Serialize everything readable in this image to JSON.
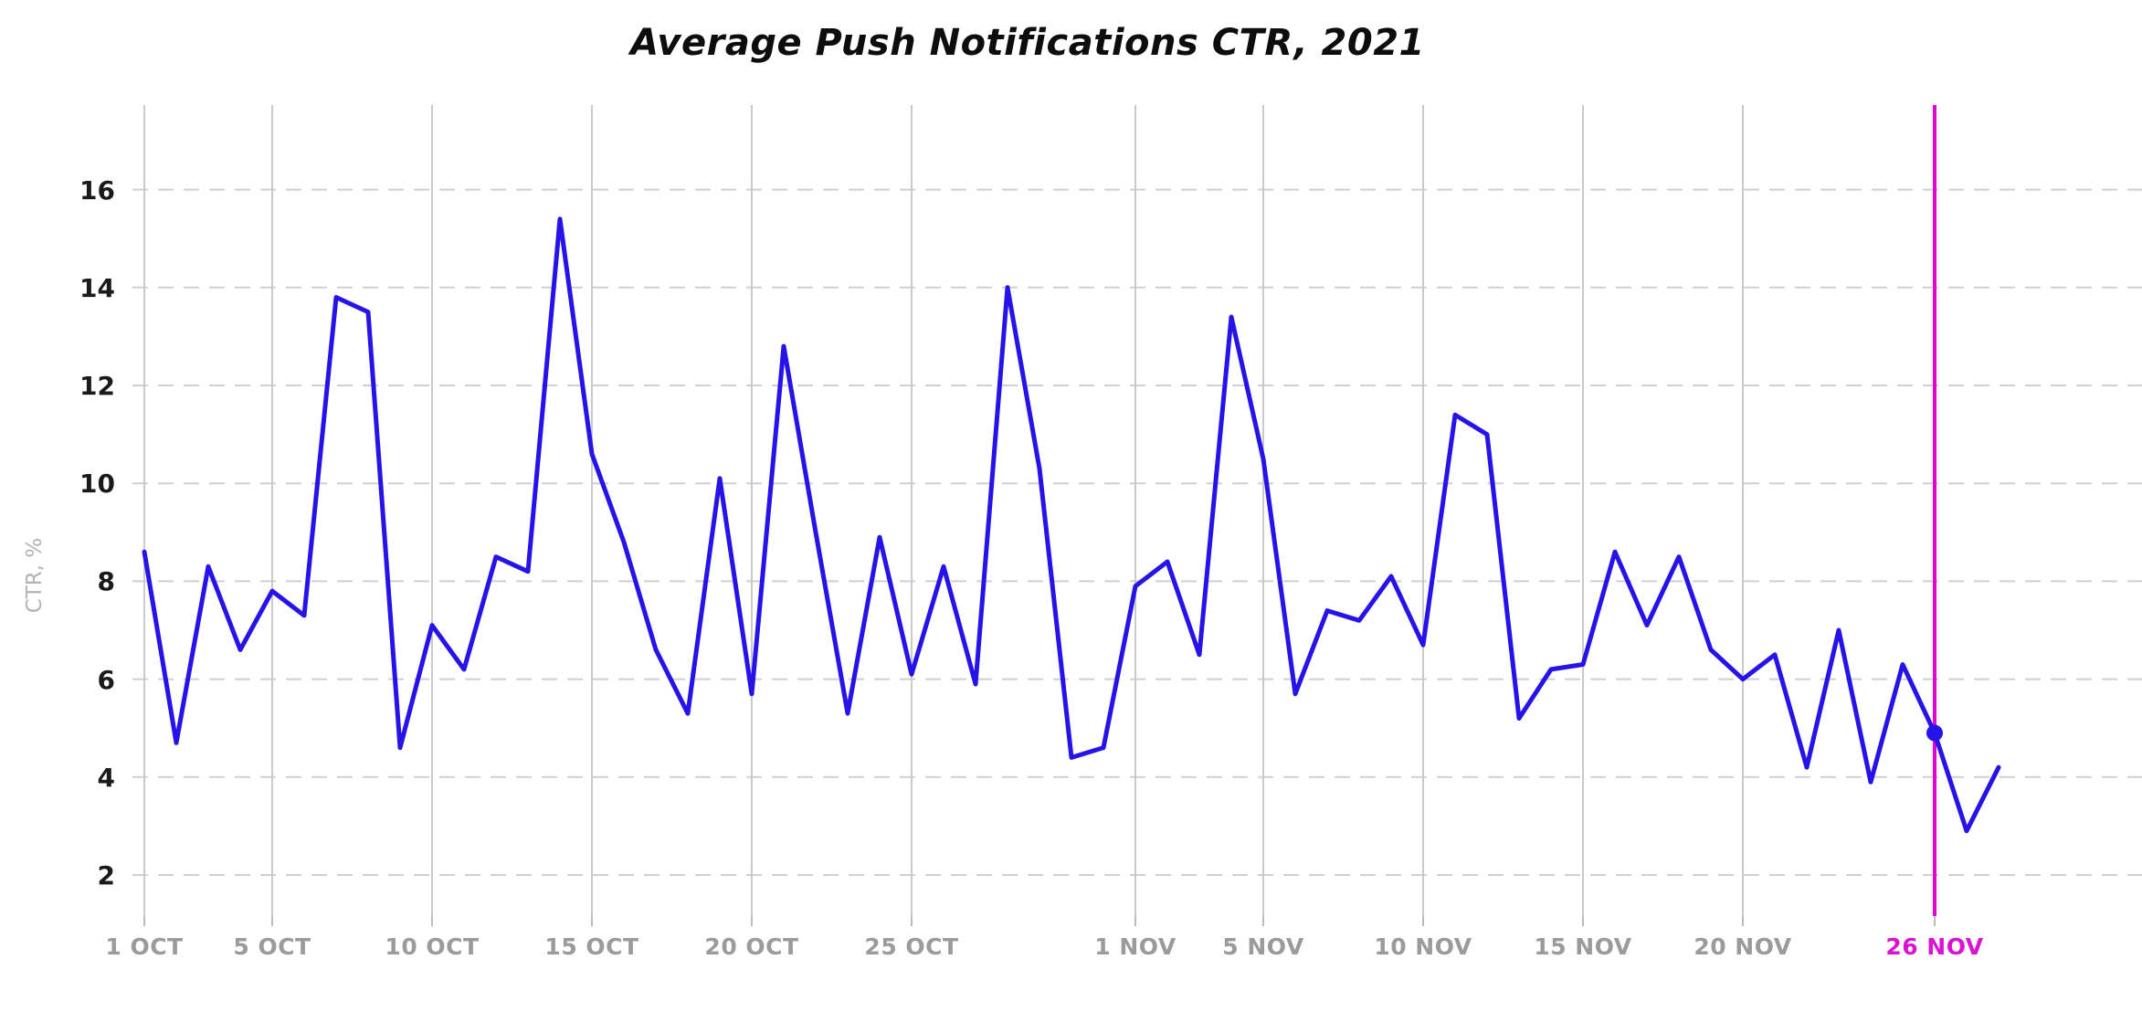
{
  "title": "Average Push Notifications CTR, 2021",
  "y_axis": {
    "label": "CTR, %",
    "ticks": [
      2,
      4,
      6,
      8,
      10,
      12,
      14,
      16
    ]
  },
  "x_axis": {
    "ticks": [
      {
        "label": "1 OCT",
        "day": 0,
        "highlight": false
      },
      {
        "label": "5 OCT",
        "day": 4,
        "highlight": false
      },
      {
        "label": "10 OCT",
        "day": 9,
        "highlight": false
      },
      {
        "label": "15 OCT",
        "day": 14,
        "highlight": false
      },
      {
        "label": "20 OCT",
        "day": 19,
        "highlight": false
      },
      {
        "label": "25 OCT",
        "day": 24,
        "highlight": false
      },
      {
        "label": "1 NOV",
        "day": 31,
        "highlight": false
      },
      {
        "label": "5 NOV",
        "day": 35,
        "highlight": false
      },
      {
        "label": "10 NOV",
        "day": 40,
        "highlight": false
      },
      {
        "label": "15 NOV",
        "day": 45,
        "highlight": false
      },
      {
        "label": "20 NOV",
        "day": 50,
        "highlight": false
      },
      {
        "label": "26 NOV",
        "day": 56,
        "highlight": true
      }
    ]
  },
  "selection": {
    "date_label": "26 NOV",
    "day": 56,
    "value": 4.9
  },
  "colors": {
    "line": "#2613ea",
    "accent": "#e206d6",
    "accent_text": "#db12d3",
    "h_grid": "#cfcfcf",
    "v_grid": "#c9c9c9",
    "tick_mark": "#bbbbbb",
    "x_label": "#9b9b9b",
    "y_label": "#1a1a1a",
    "y_axis_title": "#b3b3b3",
    "title_text": "#0d0d0d"
  },
  "chart_data": {
    "type": "line",
    "title": "Average Push Notifications CTR, 2021",
    "xlabel": "",
    "ylabel": "CTR, %",
    "ylim": [
      2,
      16
    ],
    "grid": true,
    "legend_position": "none",
    "x": [
      "1 Oct",
      "2 Oct",
      "3 Oct",
      "4 Oct",
      "5 Oct",
      "6 Oct",
      "7 Oct",
      "8 Oct",
      "9 Oct",
      "10 Oct",
      "11 Oct",
      "12 Oct",
      "13 Oct",
      "14 Oct",
      "15 Oct",
      "16 Oct",
      "17 Oct",
      "18 Oct",
      "19 Oct",
      "20 Oct",
      "21 Oct",
      "22 Oct",
      "23 Oct",
      "24 Oct",
      "25 Oct",
      "26 Oct",
      "27 Oct",
      "28 Oct",
      "29 Oct",
      "30 Oct",
      "31 Oct",
      "1 Nov",
      "2 Nov",
      "3 Nov",
      "4 Nov",
      "5 Nov",
      "6 Nov",
      "7 Nov",
      "8 Nov",
      "9 Nov",
      "10 Nov",
      "11 Nov",
      "12 Nov",
      "13 Nov",
      "14 Nov",
      "15 Nov",
      "16 Nov",
      "17 Nov",
      "18 Nov",
      "19 Nov",
      "20 Nov",
      "21 Nov",
      "22 Nov",
      "23 Nov",
      "24 Nov",
      "25 Nov",
      "26 Nov",
      "27 Nov",
      "28 Nov"
    ],
    "values": [
      8.6,
      4.7,
      8.3,
      6.6,
      7.8,
      7.3,
      13.8,
      13.5,
      4.6,
      7.1,
      6.2,
      8.5,
      8.2,
      15.4,
      10.6,
      8.8,
      6.6,
      5.3,
      10.1,
      5.7,
      12.8,
      9.0,
      5.3,
      8.9,
      6.1,
      8.3,
      5.9,
      14.0,
      10.3,
      4.4,
      4.6,
      7.9,
      8.4,
      6.5,
      13.4,
      10.5,
      5.7,
      7.4,
      7.2,
      8.1,
      6.7,
      11.4,
      11.0,
      5.2,
      6.2,
      6.3,
      8.6,
      7.1,
      8.5,
      6.6,
      6.0,
      6.5,
      4.2,
      7.0,
      3.9,
      6.3,
      4.9,
      2.9,
      4.2
    ],
    "annotations": [
      {
        "type": "vline",
        "x": "26 Nov",
        "color": "#e206d6"
      },
      {
        "type": "marker",
        "x": "26 Nov",
        "y": 4.9,
        "color": "#2613ea"
      }
    ]
  }
}
